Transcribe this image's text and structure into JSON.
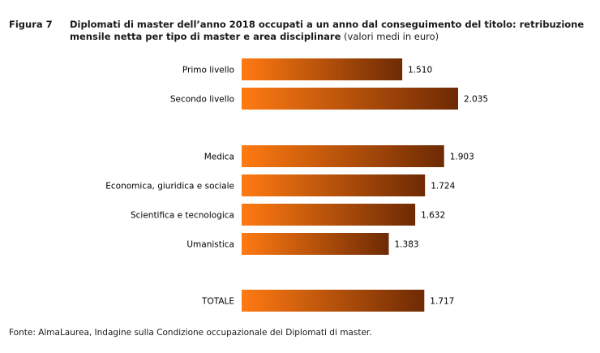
{
  "figure": {
    "label": "Figura 7",
    "title_bold": "Diplomati di master dell’anno 2018 occupati a un anno dal conseguimento del titolo: retribuzione mensile netta per tipo di master e area disciplinare",
    "title_normal": "(valori medi in euro)"
  },
  "source": "Fonte: AlmaLaurea, Indagine sulla Condizione occupazionale dei Diplomati di master.",
  "colors": {
    "bar_start": "#ff7a12",
    "bar_end": "#6e2a04"
  },
  "chart_data": {
    "type": "bar",
    "orientation": "horizontal",
    "title": "Diplomati di master dell’anno 2018 occupati a un anno dal conseguimento del titolo: retribuzione mensile netta per tipo di master e area disciplinare (valori medi in euro)",
    "xlabel": "",
    "ylabel": "",
    "grid": false,
    "categories": [
      "Primo livello",
      "Secondo livello",
      "Medica",
      "Economica, giuridica e sociale",
      "Scientifica e tecnologica",
      "Umanistica",
      "TOTALE"
    ],
    "values": [
      1510,
      2035,
      1903,
      1724,
      1632,
      1383,
      1717
    ],
    "value_labels": [
      "1.510",
      "2.035",
      "1.903",
      "1.724",
      "1.632",
      "1.383",
      "1.717"
    ],
    "groups": [
      [
        "Primo livello",
        "Secondo livello"
      ],
      [
        "Medica",
        "Economica, giuridica e sociale",
        "Scientifica e tecnologica",
        "Umanistica"
      ],
      [
        "TOTALE"
      ]
    ],
    "xlim": [
      0,
      2035
    ]
  }
}
